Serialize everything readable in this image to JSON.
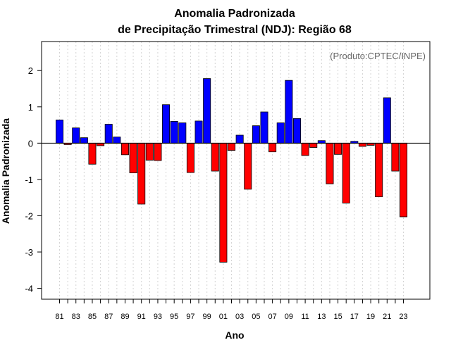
{
  "chart_data": {
    "type": "bar",
    "title": "Anomalia Padronizada",
    "subtitle": "de Precipitação Trimestral (NDJ): Região 68",
    "xlabel": "Ano",
    "ylabel": "Anomalia Padronizada",
    "annotation": "(Produto:CPTEC/INPE)",
    "ylim": [
      -4.3,
      2.8
    ],
    "yticks": [
      -4,
      -3,
      -2,
      -1,
      0,
      1,
      2
    ],
    "grid": "vertical dotted",
    "colors": {
      "positive": "#0000ff",
      "negative": "#ff0000",
      "edge": "#000000"
    },
    "categories": [
      "81",
      "82",
      "83",
      "84",
      "85",
      "86",
      "87",
      "88",
      "89",
      "90",
      "91",
      "92",
      "93",
      "94",
      "95",
      "96",
      "97",
      "98",
      "99",
      "00",
      "01",
      "02",
      "03",
      "04",
      "05",
      "06",
      "07",
      "08",
      "09",
      "10",
      "11",
      "12",
      "13",
      "14",
      "15",
      "16",
      "17",
      "18",
      "19",
      "20",
      "21",
      "22",
      "23"
    ],
    "tick_labels": [
      "81",
      "83",
      "85",
      "87",
      "89",
      "91",
      "93",
      "95",
      "97",
      "99",
      "01",
      "03",
      "05",
      "07",
      "09",
      "11",
      "13",
      "15",
      "17",
      "19",
      "21",
      "23"
    ],
    "values": [
      0.64,
      -0.04,
      0.42,
      0.15,
      -0.58,
      -0.07,
      0.52,
      0.17,
      -0.32,
      -0.82,
      -1.68,
      -0.47,
      -0.48,
      1.06,
      0.6,
      0.56,
      -0.81,
      0.61,
      1.78,
      -0.77,
      -3.28,
      -0.2,
      0.22,
      -1.27,
      0.48,
      0.86,
      -0.24,
      0.56,
      1.73,
      0.68,
      -0.34,
      -0.12,
      0.07,
      -1.12,
      -0.31,
      -1.65,
      0.05,
      -0.09,
      -0.06,
      -1.48,
      1.25,
      -0.77,
      -2.03
    ]
  }
}
